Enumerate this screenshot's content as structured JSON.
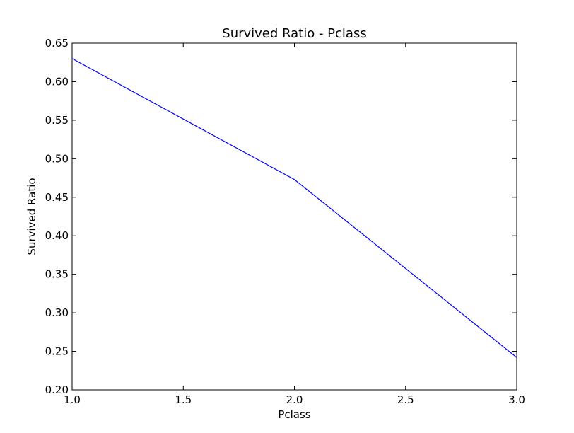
{
  "chart_data": {
    "type": "line",
    "title": "Survived Ratio - Pclass",
    "xlabel": "Pclass",
    "ylabel": "Survived Ratio",
    "xlim": [
      1.0,
      3.0
    ],
    "ylim": [
      0.2,
      0.65
    ],
    "x_ticks": [
      "1.0",
      "1.5",
      "2.0",
      "2.5",
      "3.0"
    ],
    "y_ticks": [
      "0.20",
      "0.25",
      "0.30",
      "0.35",
      "0.40",
      "0.45",
      "0.50",
      "0.55",
      "0.60",
      "0.65"
    ],
    "grid": false,
    "series": [
      {
        "x": [
          1,
          2,
          3
        ],
        "values": [
          0.63,
          0.473,
          0.242
        ],
        "color": "#0000ff"
      }
    ]
  }
}
